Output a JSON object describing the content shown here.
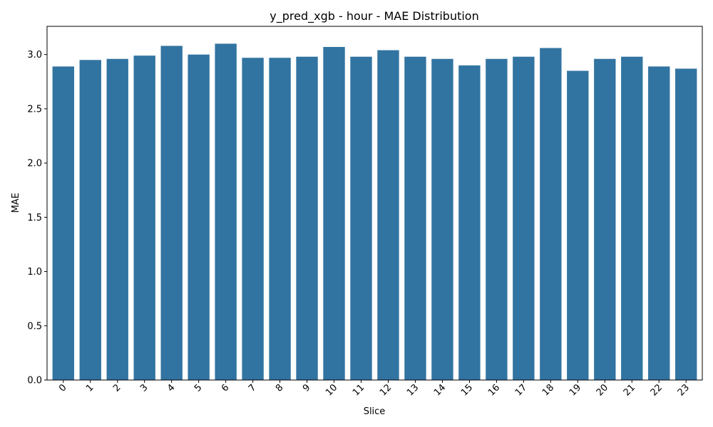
{
  "chart_data": {
    "type": "bar",
    "title": "y_pred_xgb - hour - MAE Distribution",
    "xlabel": "Slice",
    "ylabel": "MAE",
    "categories": [
      "0",
      "1",
      "2",
      "3",
      "4",
      "5",
      "6",
      "7",
      "8",
      "9",
      "10",
      "11",
      "12",
      "13",
      "14",
      "15",
      "16",
      "17",
      "18",
      "19",
      "20",
      "21",
      "22",
      "23"
    ],
    "values": [
      2.89,
      2.95,
      2.96,
      2.99,
      3.08,
      3.0,
      3.1,
      2.97,
      2.97,
      2.98,
      3.07,
      2.98,
      3.04,
      2.98,
      2.96,
      2.9,
      2.96,
      2.98,
      3.06,
      2.85,
      2.96,
      2.98,
      2.89,
      2.87
    ],
    "ylim": [
      0,
      3.26
    ],
    "yticks": [
      0.0,
      0.5,
      1.0,
      1.5,
      2.0,
      2.5,
      3.0
    ],
    "ytick_labels": [
      "0.0",
      "0.5",
      "1.0",
      "1.5",
      "2.0",
      "2.5",
      "3.0"
    ],
    "bar_color": "#3274a1",
    "grid": false,
    "legend": "none"
  }
}
